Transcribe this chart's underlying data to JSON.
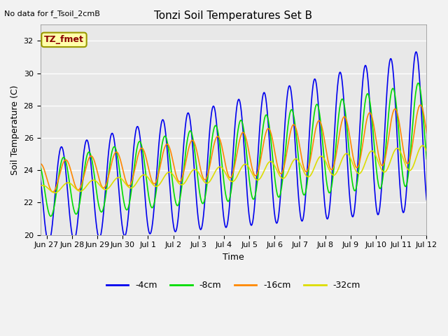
{
  "title": "Tonzi Soil Temperatures Set B",
  "xlabel": "Time",
  "ylabel": "Soil Temperature (C)",
  "note": "No data for f_Tsoil_2cmB",
  "legend_label": "TZ_fmet",
  "ylim": [
    20,
    33
  ],
  "yticks": [
    20,
    22,
    24,
    26,
    28,
    30,
    32
  ],
  "line_colors": {
    "-4cm": "#0000ee",
    "-8cm": "#00dd00",
    "-16cm": "#ff8800",
    "-32cm": "#dddd00"
  },
  "line_widths": {
    "-4cm": 1.2,
    "-8cm": 1.2,
    "-16cm": 1.2,
    "-32cm": 1.2
  },
  "bg_color": "#e8e8e8",
  "fig_bg_color": "#f2f2f2",
  "xtick_labels": [
    "Jun 27",
    "Jun 28",
    "Jun 29",
    "Jun 30",
    "Jul 1",
    "Jul 2",
    "Jul 3",
    "Jul 4",
    "Jul 5",
    "Jul 6",
    "Jul 7",
    "Jul 8",
    "Jul 9",
    "Jul 10",
    "Jul 11",
    "Jul 12"
  ],
  "n_points": 960
}
